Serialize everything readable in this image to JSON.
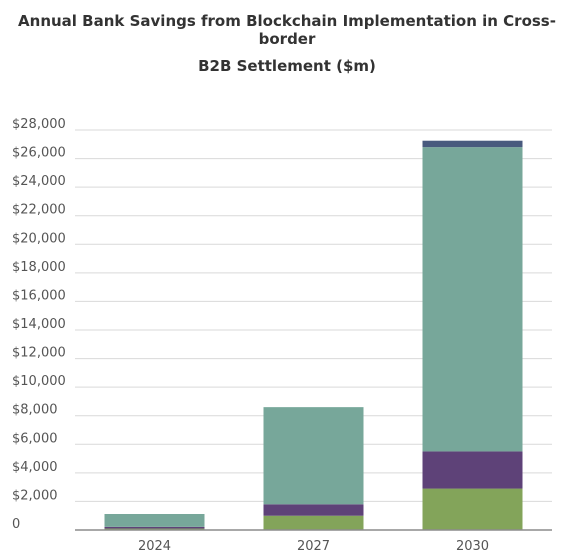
{
  "chart_data": {
    "type": "bar",
    "stacked": true,
    "title_line_1": "Annual Bank Savings from Blockchain Implementation in Cross-border",
    "title_line_2": "B2B Settlement ($m)",
    "xlabel": "",
    "ylabel": "",
    "categories": [
      "2024",
      "2027",
      "2030"
    ],
    "ylim": [
      0,
      28000
    ],
    "y_ticks": [
      0,
      2000,
      4000,
      6000,
      8000,
      10000,
      12000,
      14000,
      16000,
      18000,
      20000,
      22000,
      24000,
      26000,
      28000
    ],
    "y_tick_labels": [
      "0",
      "$2,000",
      "$4,000",
      "$6,000",
      "$8,000",
      "$10,000",
      "$12,000",
      "$14,000",
      "$16,000",
      "$18,000",
      "$20,000",
      "$22,000",
      "$24,000",
      "$26,000",
      "$28,000"
    ],
    "grid": true,
    "legend": "none",
    "series": [
      {
        "color": "#83a45a",
        "values": [
          100,
          1000,
          2900
        ]
      },
      {
        "color": "#5e4278",
        "values": [
          120,
          800,
          2600
        ]
      },
      {
        "color": "#77a79a",
        "values": [
          900,
          6800,
          21300
        ]
      },
      {
        "color": "#485a7e",
        "values": [
          0,
          0,
          450
        ]
      }
    ]
  }
}
